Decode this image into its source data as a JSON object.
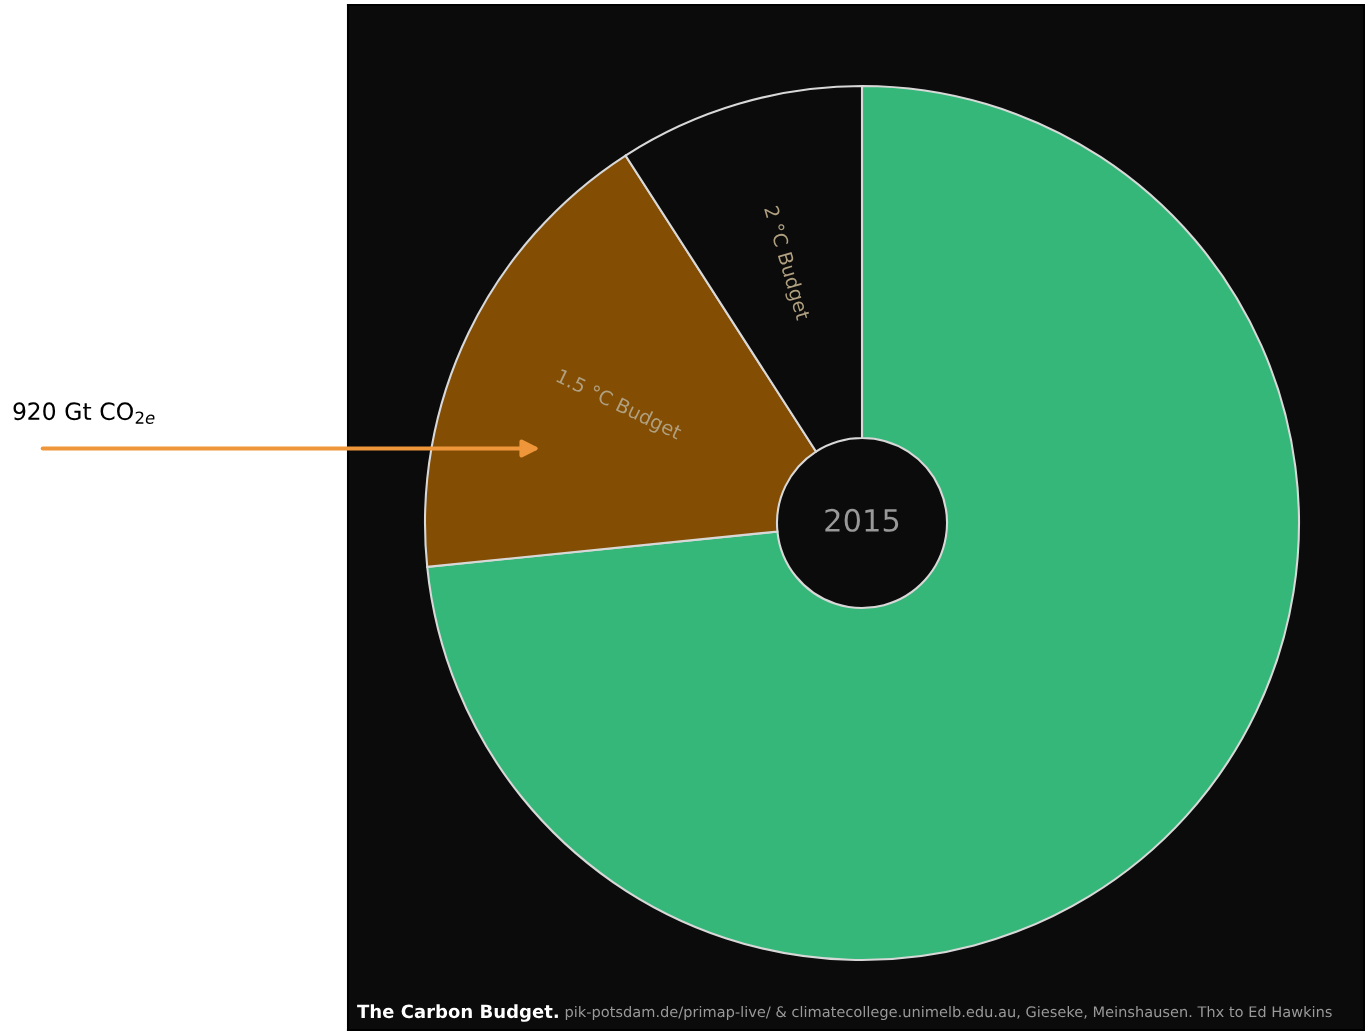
{
  "chart_data": {
    "type": "donut",
    "title": "The Carbon Budget.",
    "categories": [
      null,
      "1.5 °C Budget",
      "2 °C Budget"
    ],
    "values": [
      73.4,
      17.5,
      9.1
    ],
    "colors": [
      "#35b779",
      "#834e04",
      "#0b0b0b"
    ],
    "annotations": [
      "2015",
      "920 Gt CO$_{2e}$",
      "pik-potsdam.de/primap-live/ & climatecollege.unimelb.edu.au, Gieseke, Meinshausen. Thx to Ed Hawkins"
    ]
  }
}
